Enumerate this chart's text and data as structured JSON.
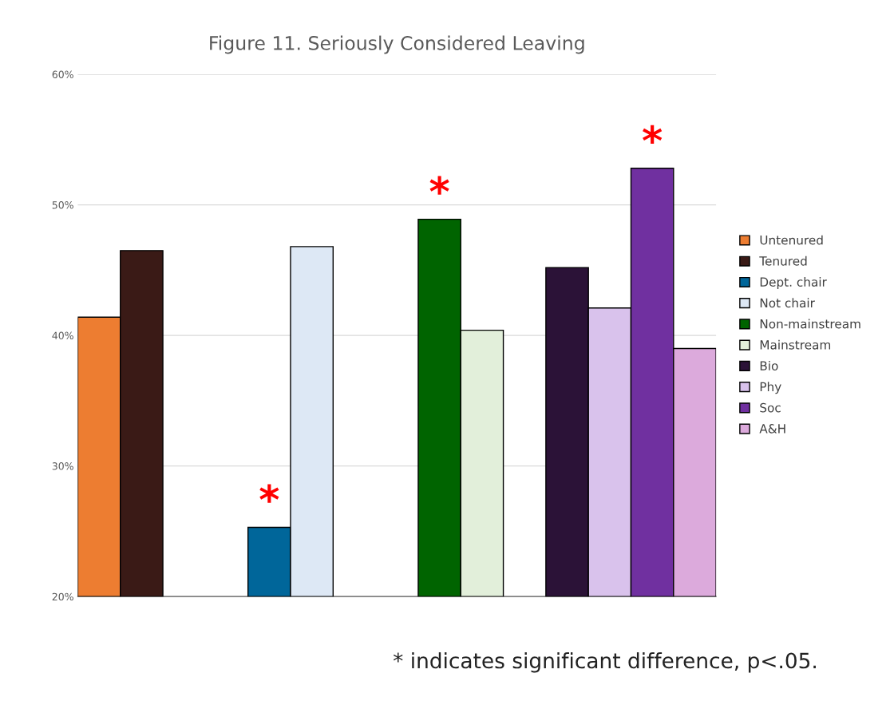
{
  "chart_data": {
    "type": "bar",
    "title": "Figure 11. Seriously Considered Leaving",
    "categories": [
      null,
      null,
      null,
      null
    ],
    "series": [
      {
        "name": "Untenured",
        "color": "#ed7d31",
        "values": [
          41.4,
          null,
          null,
          null
        ]
      },
      {
        "name": "Tenured",
        "color": "#3a1a16",
        "values": [
          46.5,
          null,
          null,
          null
        ]
      },
      {
        "name": "Dept. chair",
        "color": "#00669a",
        "values": [
          null,
          25.3,
          null,
          null
        ],
        "value_labels": [
          null,
          "*",
          null,
          null
        ]
      },
      {
        "name": "Not chair",
        "color": "#dde8f5",
        "values": [
          null,
          46.8,
          null,
          null
        ]
      },
      {
        "name": "Non-mainstream",
        "color": "#006400",
        "values": [
          null,
          null,
          48.9,
          null
        ],
        "value_labels": [
          null,
          null,
          "*",
          null
        ]
      },
      {
        "name": "Mainstream",
        "color": "#e2efda",
        "values": [
          null,
          null,
          40.4,
          null
        ]
      },
      {
        "name": "Bio",
        "color": "#2b1237",
        "values": [
          null,
          null,
          null,
          45.2
        ]
      },
      {
        "name": "Phy",
        "color": "#d9c2ec",
        "values": [
          null,
          null,
          null,
          42.1
        ]
      },
      {
        "name": "Soc",
        "color": "#7030a0",
        "values": [
          null,
          null,
          null,
          52.8
        ],
        "value_labels": [
          null,
          null,
          null,
          "*"
        ]
      },
      {
        "name": "A&H",
        "color": "#dcaadc",
        "values": [
          null,
          null,
          null,
          39.0
        ]
      }
    ],
    "ylim": [
      20,
      60
    ],
    "yticks": [
      {
        "value": 20,
        "label": "20%"
      },
      {
        "value": 30,
        "label": "30%"
      },
      {
        "value": 40,
        "label": "40%"
      },
      {
        "value": 50,
        "label": "50%"
      },
      {
        "value": 60,
        "label": "60%"
      }
    ],
    "grid": "y",
    "legend": "right",
    "annotations": [
      "* indicates significant difference, p<.05."
    ]
  }
}
